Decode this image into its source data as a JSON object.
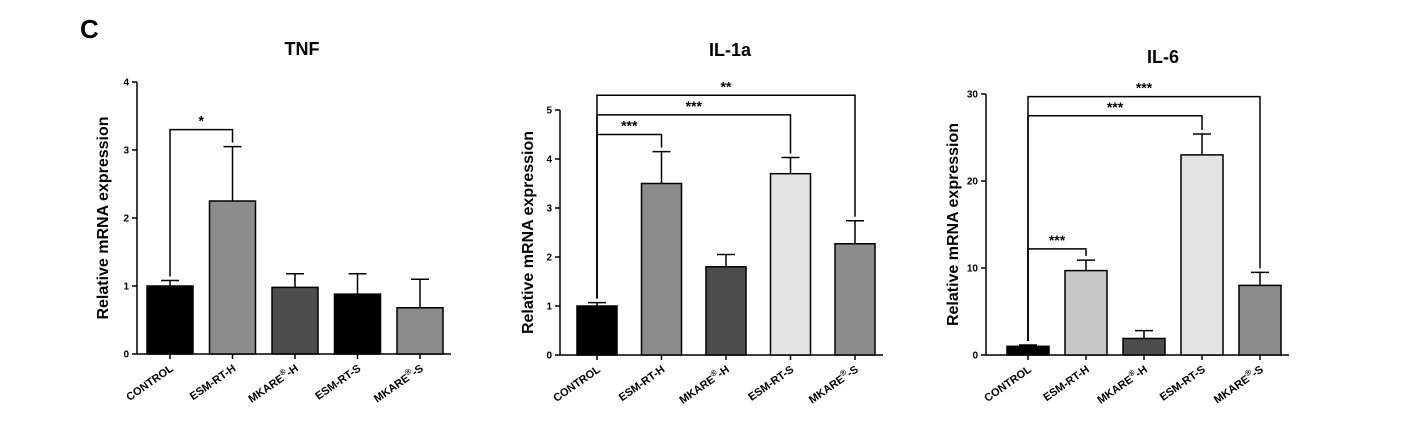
{
  "panel_label": "C",
  "chart_data": [
    {
      "type": "bar",
      "title": "TNF",
      "ylabel": "Relative mRNA expression",
      "xlabel": "",
      "categories": [
        "CONTROL",
        "ESM-RT-H",
        "MKARE®-H",
        "ESM-RT-S",
        "MKARE®-S"
      ],
      "values": [
        1.0,
        2.25,
        0.98,
        0.88,
        0.68
      ],
      "errors": [
        0.08,
        0.8,
        0.2,
        0.3,
        0.42
      ],
      "bar_colors": [
        "#000000",
        "#8c8c8c",
        "#4d4d4d",
        "#000000",
        "#8c8c8c"
      ],
      "ylim": [
        0,
        4
      ],
      "yticks": [
        0,
        1,
        2,
        3,
        4
      ],
      "significance": [
        {
          "from": 0,
          "to": 1,
          "label": "*",
          "y": 3.3
        }
      ]
    },
    {
      "type": "bar",
      "title": "IL-1a",
      "ylabel": "Relative mRNA expression",
      "xlabel": "",
      "categories": [
        "CONTROL",
        "ESM-RT-H",
        "MKARE®-H",
        "ESM-RT-S",
        "MKARE®-S"
      ],
      "values": [
        1.0,
        3.5,
        1.8,
        3.7,
        2.27
      ],
      "errors": [
        0.07,
        0.65,
        0.25,
        0.33,
        0.47
      ],
      "bar_colors": [
        "#000000",
        "#8c8c8c",
        "#4d4d4d",
        "#e3e3e3",
        "#8c8c8c"
      ],
      "ylim": [
        0,
        5
      ],
      "yticks": [
        0,
        1,
        2,
        3,
        4,
        5
      ],
      "significance": [
        {
          "from": 0,
          "to": 1,
          "label": "***",
          "y": 4.5
        },
        {
          "from": 0,
          "to": 3,
          "label": "***",
          "y": 4.9
        },
        {
          "from": 0,
          "to": 4,
          "label": "**",
          "y": 5.3
        }
      ]
    },
    {
      "type": "bar",
      "title": "IL-6",
      "ylabel": "Relative mRNA expression",
      "xlabel": "",
      "categories": [
        "CONTROL",
        "ESM-RT-H",
        "MKARE®-H",
        "ESM-RT-S",
        "MKARE®-S"
      ],
      "values": [
        1.0,
        9.7,
        1.9,
        23.0,
        8.0
      ],
      "errors": [
        0.15,
        1.2,
        0.9,
        2.4,
        1.5
      ],
      "bar_colors": [
        "#000000",
        "#c8c8c8",
        "#4d4d4d",
        "#e3e3e3",
        "#8c8c8c"
      ],
      "ylim": [
        0,
        30
      ],
      "yticks": [
        0,
        10,
        20,
        30
      ],
      "significance": [
        {
          "from": 0,
          "to": 1,
          "label": "***",
          "y": 12.2
        },
        {
          "from": 0,
          "to": 3,
          "label": "***",
          "y": 27.5
        },
        {
          "from": 0,
          "to": 4,
          "label": "***",
          "y": 29.7
        }
      ]
    }
  ]
}
